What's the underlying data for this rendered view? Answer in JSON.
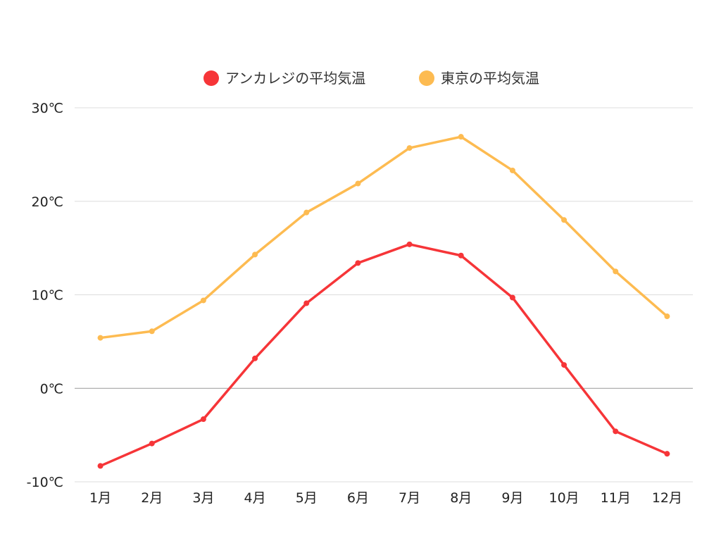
{
  "chart_data": {
    "type": "line",
    "title": "",
    "xlabel": "",
    "ylabel": "",
    "categories": [
      "1月",
      "2月",
      "3月",
      "4月",
      "5月",
      "6月",
      "7月",
      "8月",
      "9月",
      "10月",
      "11月",
      "12月"
    ],
    "series": [
      {
        "name": "アンカレジの平均気温",
        "color": "#f63538",
        "values": [
          -8.3,
          -5.9,
          -3.3,
          3.2,
          9.1,
          13.4,
          15.4,
          14.2,
          9.7,
          2.5,
          -4.6,
          -7.0
        ]
      },
      {
        "name": "東京の平均気温",
        "color": "#fdbb51",
        "values": [
          5.4,
          6.1,
          9.4,
          14.3,
          18.8,
          21.9,
          25.7,
          26.9,
          23.3,
          18.0,
          12.5,
          7.7
        ]
      }
    ],
    "ylim": [
      -10,
      30
    ],
    "yticks": [
      -10,
      0,
      10,
      20,
      30
    ],
    "ytick_labels": [
      "-10℃",
      "0℃",
      "10℃",
      "20℃",
      "30℃"
    ],
    "grid": true,
    "legend_position": "top-center",
    "grid_color": "#dddddd",
    "zero_line_color": "#999999"
  }
}
